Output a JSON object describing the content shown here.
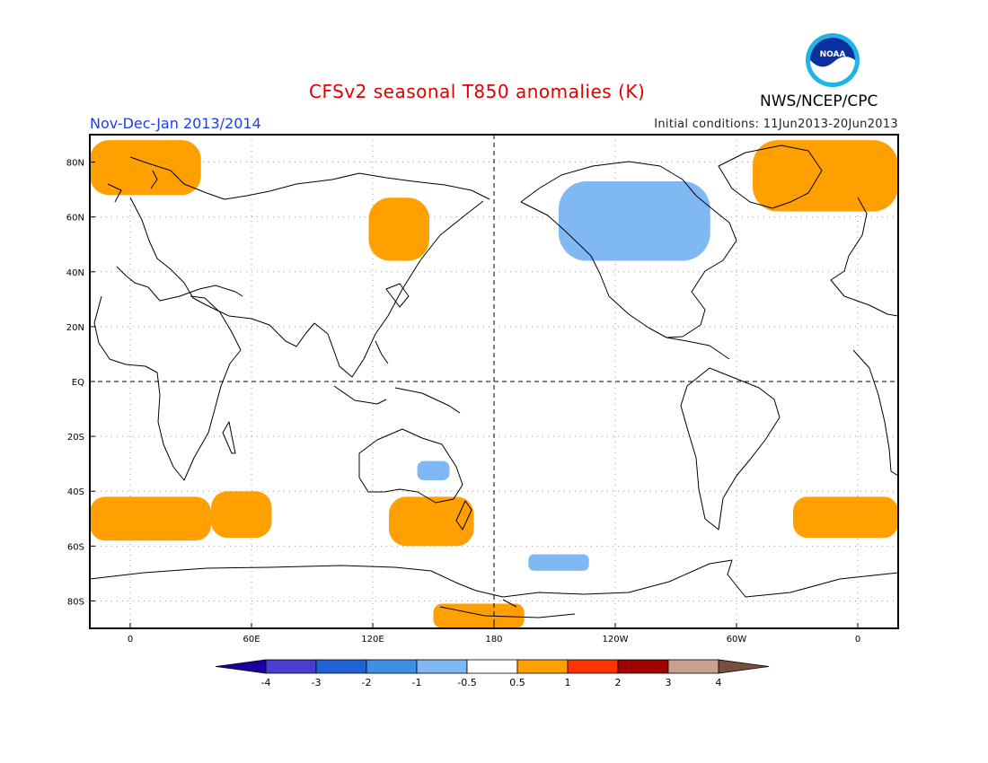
{
  "header": {
    "title": "CFSv2 seasonal T850 anomalies (K)",
    "season": "Nov-Dec-Jan 2013/2014",
    "initial_conditions": "Initial conditions: 11Jun2013-20Jun2013",
    "agency": "NWS/NCEP/CPC",
    "logo_text": "NOAA"
  },
  "map": {
    "projection": "cylindrical equidistant",
    "lon_range": [
      -20,
      380
    ],
    "lat_range": [
      -90,
      90
    ],
    "lat_ticks": [
      {
        "label": "80N",
        "lat": 80
      },
      {
        "label": "60N",
        "lat": 60
      },
      {
        "label": "40N",
        "lat": 40
      },
      {
        "label": "20N",
        "lat": 20
      },
      {
        "label": "EQ",
        "lat": 0
      },
      {
        "label": "20S",
        "lat": -20
      },
      {
        "label": "40S",
        "lat": -40
      },
      {
        "label": "60S",
        "lat": -60
      },
      {
        "label": "80S",
        "lat": -80
      }
    ],
    "lon_ticks": [
      {
        "label": "0",
        "lon": 0
      },
      {
        "label": "60E",
        "lon": 60
      },
      {
        "label": "120E",
        "lon": 120
      },
      {
        "label": "180",
        "lon": 180
      },
      {
        "label": "120W",
        "lon": 240
      },
      {
        "label": "60W",
        "lon": 300
      },
      {
        "label": "0",
        "lon": 360
      }
    ],
    "dateline_lon": 180,
    "equator_lat": 0
  },
  "colorbar": {
    "labels": [
      "-4",
      "-3",
      "-2",
      "-1",
      "-0.5",
      "0.5",
      "1",
      "2",
      "3",
      "4"
    ],
    "colors": [
      "#1a00a0",
      "#4b3dd0",
      "#1f63d6",
      "#3f8fe8",
      "#80b8f4",
      "#ffffff",
      "#ff9f00",
      "#ff3300",
      "#a00000",
      "#c8a090",
      "#785040"
    ]
  },
  "anomalies": {
    "positive_color": "#ffa000",
    "negative_color": "#80b8f4",
    "positive_regions": [
      {
        "name": "greenland-sea",
        "lon": [
          -20,
          35
        ],
        "lat": [
          68,
          88
        ]
      },
      {
        "name": "greenland-north-atlantic",
        "lon": [
          308,
          380
        ],
        "lat": [
          62,
          88
        ]
      },
      {
        "name": "northeast-asia",
        "lon": [
          118,
          148
        ],
        "lat": [
          44,
          67
        ]
      },
      {
        "name": "southern-ocean-south-atlantic",
        "lon": [
          -20,
          40
        ],
        "lat": [
          -58,
          -42
        ]
      },
      {
        "name": "southern-ocean-south-africa",
        "lon": [
          40,
          70
        ],
        "lat": [
          -57,
          -40
        ]
      },
      {
        "name": "southern-ocean-australia",
        "lon": [
          128,
          170
        ],
        "lat": [
          -60,
          -42
        ]
      },
      {
        "name": "southern-ocean-southeast-pacific",
        "lon": [
          328,
          380
        ],
        "lat": [
          -57,
          -42
        ]
      },
      {
        "name": "ross-sea",
        "lon": [
          150,
          195
        ],
        "lat": [
          -90,
          -81
        ]
      }
    ],
    "negative_regions": [
      {
        "name": "canada",
        "lon": [
          212,
          287
        ],
        "lat": [
          44,
          73
        ]
      },
      {
        "name": "southeast-australia",
        "lon": [
          142,
          158
        ],
        "lat": [
          -36,
          -29
        ]
      },
      {
        "name": "south-pacific",
        "lon": [
          197,
          227
        ],
        "lat": [
          -69,
          -63
        ]
      }
    ]
  }
}
